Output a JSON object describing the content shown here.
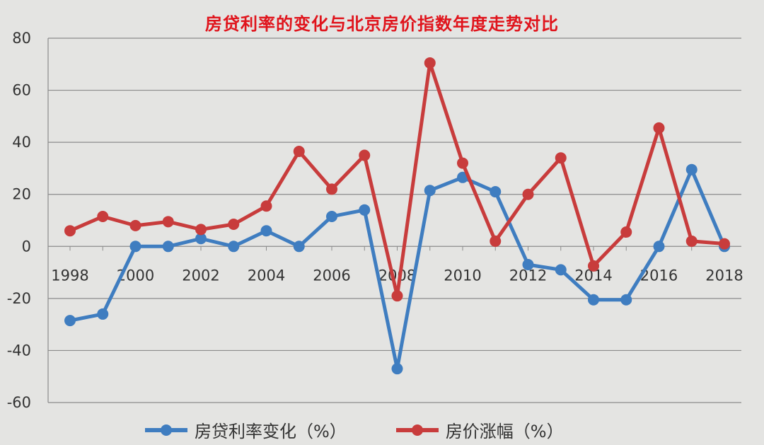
{
  "chart_data": {
    "type": "line",
    "title": "房贷利率的变化与北京房价指数年度走势对比",
    "xlabel": "",
    "ylabel": "",
    "categories": [
      "1998",
      "1999",
      "2000",
      "2001",
      "2002",
      "2003",
      "2004",
      "2005",
      "2006",
      "2007",
      "2008",
      "2009",
      "2010",
      "2011",
      "2012",
      "2013",
      "2014",
      "2015",
      "2016",
      "2017",
      "2018"
    ],
    "x_tick_labels": [
      "1998",
      "2000",
      "2002",
      "2004",
      "2006",
      "2008",
      "2010",
      "2012",
      "2014",
      "2016",
      "2018"
    ],
    "ylim": [
      -60,
      80
    ],
    "y_ticks": [
      80,
      60,
      40,
      20,
      0,
      -20,
      -40,
      -60
    ],
    "grid": "horizontal",
    "legend_position": "bottom",
    "series": [
      {
        "name": "房贷利率变化（%）",
        "color": "#3f7dc0",
        "values": [
          -28.5,
          -26,
          0,
          0,
          3,
          0,
          6,
          0,
          11.5,
          14,
          -47,
          21.5,
          26.5,
          21,
          -7,
          -9,
          -20.5,
          -20.5,
          0,
          29.5,
          0
        ]
      },
      {
        "name": "房价涨幅（%）",
        "color": "#c83c3c",
        "values": [
          6,
          11.5,
          8,
          9.5,
          6.5,
          8.5,
          15.5,
          36.5,
          22,
          35,
          -19,
          70.5,
          32,
          2,
          20,
          34,
          -7.5,
          5.5,
          45.5,
          2,
          1
        ]
      }
    ]
  }
}
